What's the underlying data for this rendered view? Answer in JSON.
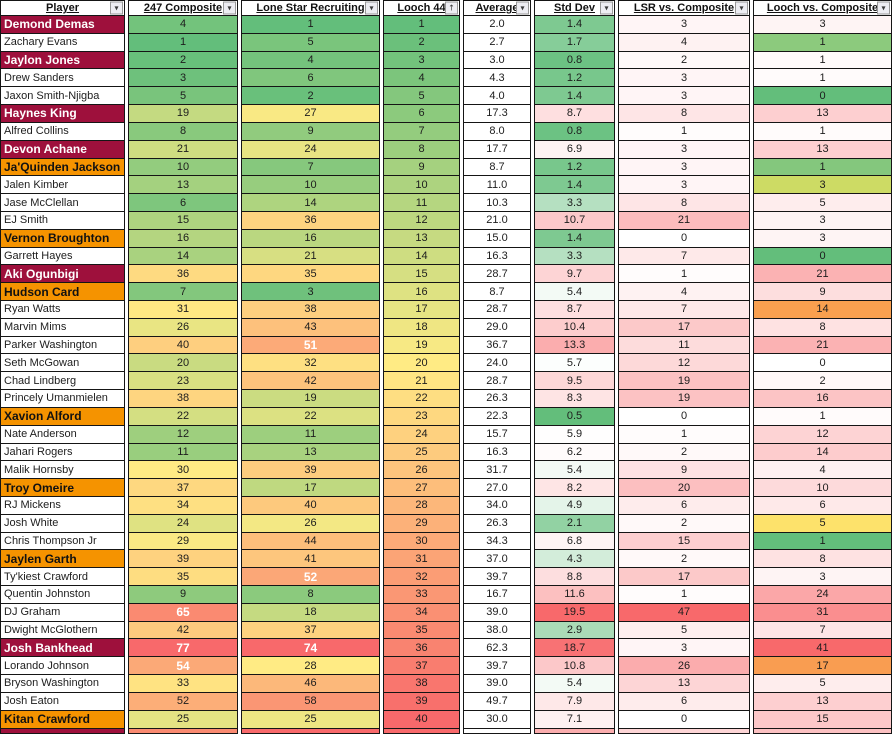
{
  "colors": {
    "aggie_maroon": "#9E103C",
    "longhorn_orange": "#F59300",
    "scale_green": "#63BE7B",
    "scale_yellow": "#FFEB84",
    "scale_red": "#F8696B",
    "grid_line": "#151515",
    "header_bg": "#FFFFFF"
  },
  "icons": {
    "filter_dropdown": "▾",
    "filter_sort_ascending": "↑"
  },
  "columns": [
    {
      "label": "Player",
      "filter": "dropdown"
    },
    {
      "label": "247 Composite",
      "filter": "dropdown"
    },
    {
      "label": "Lone Star Recruiting",
      "filter": "dropdown"
    },
    {
      "label": "Looch 44",
      "filter": "sort-asc"
    },
    {
      "label": "Average",
      "filter": "dropdown"
    },
    {
      "label": "Std Dev",
      "filter": "dropdown"
    },
    {
      "label": "LSR vs. Composite",
      "filter": "dropdown"
    },
    {
      "label": "Looch vs. Composite",
      "filter": "dropdown"
    }
  ],
  "rows": [
    {
      "player": "Demond Demas",
      "team": "aggie",
      "values": [
        "4",
        "1",
        "1",
        "2.0",
        "1.4",
        "3",
        "3"
      ],
      "colors": [
        "#73C37C",
        "#63BE7B",
        "#63BE7B",
        "#FFFFFF",
        "#7EC991",
        "#FFF5F6",
        "#FEF4F4"
      ],
      "white_bold": []
    },
    {
      "player": "Zachary Evans",
      "team": "none",
      "values": [
        "1",
        "5",
        "2",
        "2.7",
        "1.7",
        "4",
        "1"
      ],
      "colors": [
        "#63BE7B",
        "#7AC57C",
        "#6BC07B",
        "#FFFFFF",
        "#86CD99",
        "#FEF2F2",
        "#8CCA7D"
      ],
      "white_bold": []
    },
    {
      "player": "Jaylon Jones",
      "team": "aggie",
      "values": [
        "2",
        "4",
        "3",
        "3.0",
        "0.8",
        "2",
        "1"
      ],
      "colors": [
        "#68C07B",
        "#74C37C",
        "#73C37C",
        "#FFFFFF",
        "#6CC283",
        "#FFF9F9",
        "#FFFBFB"
      ],
      "white_bold": []
    },
    {
      "player": "Drew Sanders",
      "team": "none",
      "values": [
        "3",
        "6",
        "4",
        "4.3",
        "1.2",
        "3",
        "1"
      ],
      "colors": [
        "#6EC17C",
        "#80C67D",
        "#7CC57C",
        "#FFFFFF",
        "#78C78C",
        "#FFF5F6",
        "#FFFBFB"
      ],
      "white_bold": []
    },
    {
      "player": "Jaxon Smith-Njigba",
      "team": "none",
      "values": [
        "5",
        "2",
        "5",
        "4.0",
        "1.4",
        "3",
        "0"
      ],
      "colors": [
        "#79C47C",
        "#69C07B",
        "#84C77D",
        "#FFFFFF",
        "#7EC991",
        "#FFF5F6",
        "#63BE7B"
      ],
      "white_bold": []
    },
    {
      "player": "Haynes King",
      "team": "aggie",
      "values": [
        "19",
        "27",
        "6",
        "17.3",
        "8.7",
        "8",
        "13"
      ],
      "colors": [
        "#C4DA81",
        "#F9E984",
        "#8CCA7D",
        "#FFFFFF",
        "#FEDFE0",
        "#FEE5E6",
        "#FDCFD0"
      ],
      "white_bold": []
    },
    {
      "player": "Alfred Collins",
      "team": "none",
      "values": [
        "8",
        "9",
        "7",
        "8.0",
        "0.8",
        "1",
        "1"
      ],
      "colors": [
        "#89C97D",
        "#91CB7E",
        "#94CC7E",
        "#FFFFFF",
        "#6CC283",
        "#FFFCFC",
        "#FFFBFB"
      ],
      "white_bold": []
    },
    {
      "player": "Devon Achane",
      "team": "aggie",
      "values": [
        "21",
        "24",
        "8",
        "17.7",
        "6.9",
        "3",
        "13"
      ],
      "colors": [
        "#CFDD81",
        "#E8E483",
        "#9CCF7E",
        "#FFFFFF",
        "#FEF3F3",
        "#FFF5F6",
        "#FDCFD0"
      ],
      "white_bold": []
    },
    {
      "player": "Ja'Quinden Jackson",
      "team": "longhorn",
      "values": [
        "10",
        "7",
        "9",
        "8.7",
        "1.2",
        "3",
        "1"
      ],
      "colors": [
        "#93CC7E",
        "#86C87D",
        "#A5D17F",
        "#FFFFFF",
        "#78C78C",
        "#FFF5F6",
        "#84C77D"
      ],
      "white_bold": []
    },
    {
      "player": "Jalen Kimber",
      "team": "none",
      "values": [
        "13",
        "10",
        "10",
        "11.0",
        "1.4",
        "3",
        "3"
      ],
      "colors": [
        "#A4D17F",
        "#97CD7E",
        "#ADD37F",
        "#FFFFFF",
        "#7EC991",
        "#FFF5F6",
        "#CDDB64"
      ],
      "white_bold": []
    },
    {
      "player": "Jase McClellan",
      "team": "none",
      "values": [
        "6",
        "14",
        "11",
        "10.3",
        "3.3",
        "8",
        "5"
      ],
      "colors": [
        "#7EC67D",
        "#AED47F",
        "#B5D680",
        "#FFFFFF",
        "#B5E0C1",
        "#FEE5E6",
        "#FEEDED"
      ],
      "white_bold": []
    },
    {
      "player": "EJ Smith",
      "team": "none",
      "values": [
        "15",
        "36",
        "12",
        "21.0",
        "10.7",
        "21",
        "3"
      ],
      "colors": [
        "#AED47F",
        "#FED480",
        "#BDD880",
        "#FFFFFF",
        "#FCC9CA",
        "#FCBCBD",
        "#FEF4F4"
      ],
      "white_bold": []
    },
    {
      "player": "Vernon Broughton",
      "team": "longhorn",
      "values": [
        "16",
        "16",
        "13",
        "15.0",
        "1.4",
        "0",
        "3"
      ],
      "colors": [
        "#B4D580",
        "#BAD780",
        "#C6DA81",
        "#FFFFFF",
        "#7EC991",
        "#FFFFFF",
        "#FEF4F4"
      ],
      "white_bold": []
    },
    {
      "player": "Garrett Hayes",
      "team": "none",
      "values": [
        "14",
        "21",
        "14",
        "16.3",
        "3.3",
        "7",
        "0"
      ],
      "colors": [
        "#A9D27F",
        "#D7DF82",
        "#CEDD81",
        "#FFFFFF",
        "#B5E0C1",
        "#FEE9E9",
        "#63BE7B"
      ],
      "white_bold": []
    },
    {
      "player": "Aki Ogunbigi",
      "team": "aggie",
      "values": [
        "36",
        "35",
        "15",
        "28.7",
        "9.7",
        "1",
        "21"
      ],
      "colors": [
        "#FEDA81",
        "#FED780",
        "#D6DF82",
        "#FFFFFF",
        "#FDD4D5",
        "#FFFCFC",
        "#FBB2B3"
      ],
      "white_bold": []
    },
    {
      "player": "Hudson Card",
      "team": "longhorn",
      "values": [
        "7",
        "3",
        "16",
        "8.7",
        "5.4",
        "4",
        "9"
      ],
      "colors": [
        "#83C77D",
        "#6FC17C",
        "#DEE282",
        "#FFFFFF",
        "#F3FAF5",
        "#FEF2F2",
        "#FDDEDE"
      ],
      "white_bold": []
    },
    {
      "player": "Ryan Watts",
      "team": "none",
      "values": [
        "31",
        "38",
        "17",
        "28.7",
        "8.7",
        "7",
        "14"
      ],
      "colors": [
        "#FFE883",
        "#FDCF7F",
        "#E6E483",
        "#FFFFFF",
        "#FEDFE0",
        "#FEE9E9",
        "#F9A04F"
      ],
      "white_bold": []
    },
    {
      "player": "Marvin Mims",
      "team": "none",
      "values": [
        "26",
        "43",
        "18",
        "29.0",
        "10.4",
        "17",
        "8"
      ],
      "colors": [
        "#E9E583",
        "#FDC17C",
        "#EFE683",
        "#FFFFFF",
        "#FDCDCD",
        "#FCC9C9",
        "#FEE2E2"
      ],
      "white_bold": []
    },
    {
      "player": "Parker Washington",
      "team": "none",
      "values": [
        "40",
        "51",
        "19",
        "36.7",
        "13.3",
        "11",
        "21"
      ],
      "colors": [
        "#FECF7F",
        "#FCAA78",
        "#F7E984",
        "#FFFFFF",
        "#FBADAE",
        "#FDDCDC",
        "#FBB2B3"
      ],
      "white_bold": [
        1
      ]
    },
    {
      "player": "Seth McGowan",
      "team": "none",
      "values": [
        "20",
        "32",
        "20",
        "24.0",
        "5.7",
        "12",
        "0"
      ],
      "colors": [
        "#C9DB81",
        "#FEE082",
        "#FFEB84",
        "#FFFFFF",
        "#FCFEFD",
        "#FDD9D9",
        "#FFFFFF"
      ],
      "white_bold": []
    },
    {
      "player": "Chad Lindberg",
      "team": "none",
      "values": [
        "23",
        "42",
        "21",
        "28.7",
        "9.5",
        "19",
        "2"
      ],
      "colors": [
        "#D9E082",
        "#FDC37C",
        "#FFE583",
        "#FFFFFF",
        "#FDD7D7",
        "#FCC2C3",
        "#FFF8F8"
      ],
      "white_bold": []
    },
    {
      "player": "Princely Umanmielen",
      "team": "none",
      "values": [
        "38",
        "19",
        "22",
        "26.3",
        "8.3",
        "19",
        "16"
      ],
      "colors": [
        "#FED580",
        "#CBDC81",
        "#FEDE82",
        "#FFFFFF",
        "#FEE4E4",
        "#FCC2C3",
        "#FCC4C5"
      ],
      "white_bold": []
    },
    {
      "player": "Xavion Alford",
      "team": "longhorn",
      "values": [
        "22",
        "22",
        "23",
        "22.3",
        "0.5",
        "0",
        "1"
      ],
      "colors": [
        "#D4DF82",
        "#DCE182",
        "#FED880",
        "#FFFFFF",
        "#63BE7B",
        "#FFFFFF",
        "#FFFBFB"
      ],
      "white_bold": []
    },
    {
      "player": "Nate Anderson",
      "team": "none",
      "values": [
        "12",
        "11",
        "24",
        "15.7",
        "5.9",
        "1",
        "12"
      ],
      "colors": [
        "#9ECF7E",
        "#9DCF7E",
        "#FED17F",
        "#FFFFFF",
        "#FFFEFE",
        "#FFFCFC",
        "#FDD3D4"
      ],
      "white_bold": []
    },
    {
      "player": "Jahari Rogers",
      "team": "none",
      "values": [
        "11",
        "13",
        "25",
        "16.3",
        "6.2",
        "2",
        "14"
      ],
      "colors": [
        "#99CE7E",
        "#A8D27F",
        "#FDCB7E",
        "#FFFFFF",
        "#FFFBFB",
        "#FFF9F9",
        "#FDCCCD"
      ],
      "white_bold": []
    },
    {
      "player": "Malik Hornsby",
      "team": "none",
      "values": [
        "30",
        "39",
        "26",
        "31.7",
        "5.4",
        "9",
        "4"
      ],
      "colors": [
        "#FFEB84",
        "#FDCC7E",
        "#FDC47D",
        "#FFFFFF",
        "#F3FAF5",
        "#FEE2E3",
        "#FEF0F1"
      ],
      "white_bold": []
    },
    {
      "player": "Troy Omeire",
      "team": "longhorn",
      "values": [
        "37",
        "17",
        "27",
        "27.0",
        "8.2",
        "20",
        "10"
      ],
      "colors": [
        "#FED880",
        "#BFD980",
        "#FDBE7B",
        "#FFFFFF",
        "#FEE5E5",
        "#FCBFC0",
        "#FDDADB"
      ],
      "white_bold": []
    },
    {
      "player": "RJ Mickens",
      "team": "none",
      "values": [
        "34",
        "40",
        "28",
        "34.0",
        "4.9",
        "6",
        "6"
      ],
      "colors": [
        "#FEE082",
        "#FDC97D",
        "#FCB77A",
        "#FFFFFF",
        "#E4F4E9",
        "#FEECEC",
        "#FEE9E9"
      ],
      "white_bold": []
    },
    {
      "player": "Josh White",
      "team": "none",
      "values": [
        "24",
        "26",
        "29",
        "26.3",
        "2.1",
        "2",
        "5"
      ],
      "colors": [
        "#DFE282",
        "#F3E884",
        "#FCB179",
        "#FFFFFF",
        "#92D2A3",
        "#FFF9F9",
        "#FDE26B"
      ],
      "white_bold": []
    },
    {
      "player": "Chris Thompson Jr",
      "team": "none",
      "values": [
        "29",
        "44",
        "30",
        "34.3",
        "6.8",
        "15",
        "1"
      ],
      "colors": [
        "#FAE984",
        "#FDBE7B",
        "#FCAA78",
        "#FFFFFF",
        "#FEF4F4",
        "#FDCFD0",
        "#63BE7B"
      ],
      "white_bold": []
    },
    {
      "player": "Jaylen Garth",
      "team": "longhorn",
      "values": [
        "39",
        "41",
        "31",
        "37.0",
        "4.3",
        "2",
        "8"
      ],
      "colors": [
        "#FED27F",
        "#FDC67D",
        "#FBA476",
        "#FFFFFF",
        "#D3EDDA",
        "#FFF9F9",
        "#FEE2E2"
      ],
      "white_bold": []
    },
    {
      "player": "Ty'kiest Crawford",
      "team": "none",
      "values": [
        "35",
        "52",
        "32",
        "39.7",
        "8.8",
        "17",
        "3"
      ],
      "colors": [
        "#FEDD81",
        "#FBA777",
        "#FB9D75",
        "#FFFFFF",
        "#FDDEDF",
        "#FCC9C9",
        "#FEF4F4"
      ],
      "white_bold": [
        1
      ]
    },
    {
      "player": "Quentin Johnston",
      "team": "none",
      "values": [
        "9",
        "8",
        "33",
        "16.7",
        "11.6",
        "1",
        "24"
      ],
      "colors": [
        "#8ECA7D",
        "#8BCA7D",
        "#FA9774",
        "#FFFFFF",
        "#FCC0C0",
        "#FFFCFC",
        "#FBA7A8"
      ],
      "white_bold": []
    },
    {
      "player": "DJ Graham",
      "team": "none",
      "values": [
        "65",
        "18",
        "34",
        "39.0",
        "19.5",
        "47",
        "31"
      ],
      "colors": [
        "#FA8A71",
        "#C5DA81",
        "#FA9073",
        "#FFFFFF",
        "#F8696B",
        "#F8696B",
        "#FA8E8F"
      ],
      "white_bold": [
        0
      ]
    },
    {
      "player": "Dwight McGlothern",
      "team": "none",
      "values": [
        "42",
        "37",
        "35",
        "38.0",
        "2.9",
        "5",
        "7"
      ],
      "colors": [
        "#FDCA7E",
        "#FED27F",
        "#FA8A71",
        "#FFFFFF",
        "#AADBB7",
        "#FEEFEF",
        "#FEE5E6"
      ],
      "white_bold": []
    },
    {
      "player": "Josh Bankhead",
      "team": "aggie",
      "values": [
        "77",
        "74",
        "36",
        "62.3",
        "18.7",
        "3",
        "41"
      ],
      "colors": [
        "#F8696B",
        "#F8696B",
        "#F98370",
        "#FFFFFF",
        "#F87274",
        "#FFF5F6",
        "#F8696B"
      ],
      "white_bold": [
        0,
        1
      ]
    },
    {
      "player": "Lorando Johnson",
      "team": "none",
      "values": [
        "54",
        "28",
        "37",
        "39.7",
        "10.8",
        "26",
        "17"
      ],
      "colors": [
        "#FBA977",
        "#FFEB84",
        "#F97D6F",
        "#FFFFFF",
        "#FCC8C9",
        "#FBACAD",
        "#F99D51"
      ],
      "white_bold": [
        0
      ]
    },
    {
      "player": "Bryson Washington",
      "team": "none",
      "values": [
        "33",
        "46",
        "38",
        "39.0",
        "5.4",
        "13",
        "5"
      ],
      "colors": [
        "#FFE382",
        "#FCB87A",
        "#F9766E",
        "#FFFFFF",
        "#F3FAF5",
        "#FDD5D6",
        "#FEEDED"
      ],
      "white_bold": []
    },
    {
      "player": "Josh Eaton",
      "team": "none",
      "values": [
        "52",
        "58",
        "39",
        "49.7",
        "7.9",
        "6",
        "13"
      ],
      "colors": [
        "#FCAE78",
        "#FA9674",
        "#F8706C",
        "#FFFFFF",
        "#FEE8E8",
        "#FEECEC",
        "#FDCFD0"
      ],
      "white_bold": []
    },
    {
      "player": "Kitan Crawford",
      "team": "longhorn",
      "values": [
        "25",
        "25",
        "40",
        "30.0",
        "7.1",
        "0",
        "15"
      ],
      "colors": [
        "#E4E383",
        "#EEE683",
        "#F8696B",
        "#FFFFFF",
        "#FEF1F1",
        "#FFFFFF",
        "#FCC8C9"
      ],
      "white_bold": []
    }
  ],
  "partial_row": {
    "team": "aggie",
    "colors": [
      "#FA8A71",
      "#F8696B",
      "#F8696B",
      "#FFFFFF",
      "#FBADAE",
      "#FDD5D6",
      "#FCC1C2"
    ]
  }
}
